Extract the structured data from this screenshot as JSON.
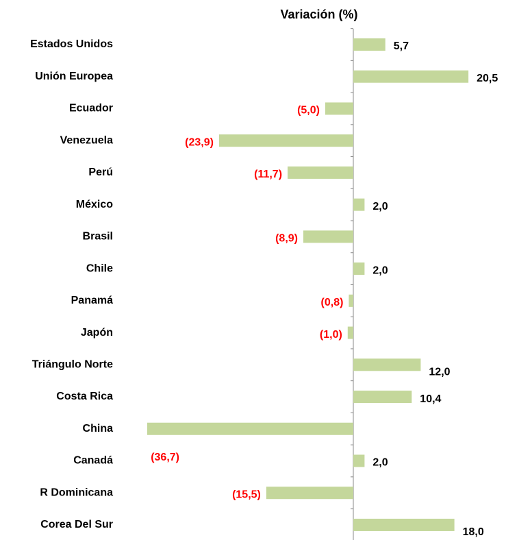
{
  "chart_data": {
    "type": "hbar",
    "title": "Variación (%)",
    "categories": [
      "Estados Unidos",
      "Unión Europea",
      "Ecuador",
      "Venezuela",
      "Perú",
      "México",
      "Brasil",
      "Chile",
      "Panamá",
      "Japón",
      "Triángulo Norte",
      "Costa Rica",
      "China",
      "Canadá",
      "R Dominicana",
      "Corea Del Sur"
    ],
    "values": [
      5.7,
      20.5,
      -5.0,
      -23.9,
      -11.7,
      2.0,
      -8.9,
      2.0,
      -0.8,
      -1.0,
      12.0,
      10.4,
      -36.7,
      2.0,
      -15.5,
      18.0
    ],
    "value_labels": [
      "5,7",
      "20,5",
      "(5,0)",
      "(23,9)",
      "(11,7)",
      "2,0",
      "(8,9)",
      "2,0",
      "(0,8)",
      "(1,0)",
      "12,0",
      "10,4",
      "(36,7)",
      "2,0",
      "(15,5)",
      "18,0"
    ],
    "color": "#c4d79b",
    "positive_label_color": "#000000",
    "negative_label_color": "#ff0000"
  }
}
